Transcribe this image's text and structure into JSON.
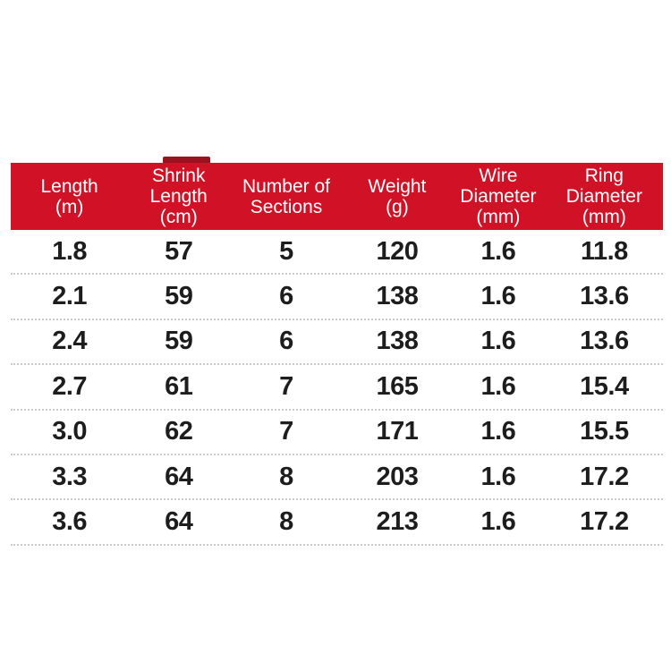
{
  "accent_color": "#d11226",
  "table": {
    "headers": [
      {
        "label": "Length\n(m)"
      },
      {
        "label": "Shrink\nLength\n(cm)"
      },
      {
        "label": "Number of\nSections"
      },
      {
        "label": "Weight\n(g)"
      },
      {
        "label": "Wire\nDiameter\n(mm)"
      },
      {
        "label": "Ring\nDiameter\n(mm)"
      }
    ],
    "rows": [
      {
        "cells": [
          "1.8",
          "57",
          "5",
          "120",
          "1.6",
          "11.8"
        ]
      },
      {
        "cells": [
          "2.1",
          "59",
          "6",
          "138",
          "1.6",
          "13.6"
        ]
      },
      {
        "cells": [
          "2.4",
          "59",
          "6",
          "138",
          "1.6",
          "13.6"
        ]
      },
      {
        "cells": [
          "2.7",
          "61",
          "7",
          "165",
          "1.6",
          "15.4"
        ]
      },
      {
        "cells": [
          "3.0",
          "62",
          "7",
          "171",
          "1.6",
          "15.5"
        ]
      },
      {
        "cells": [
          "3.3",
          "64",
          "8",
          "203",
          "1.6",
          "17.2"
        ]
      },
      {
        "cells": [
          "3.6",
          "64",
          "8",
          "213",
          "1.6",
          "17.2"
        ]
      }
    ]
  },
  "chart_data": {
    "type": "table",
    "title": "",
    "columns": [
      "Length (m)",
      "Shrink Length (cm)",
      "Number of Sections",
      "Weight (g)",
      "Wire Diameter (mm)",
      "Ring Diameter (mm)"
    ],
    "rows": [
      [
        1.8,
        57,
        5,
        120,
        1.6,
        11.8
      ],
      [
        2.1,
        59,
        6,
        138,
        1.6,
        13.6
      ],
      [
        2.4,
        59,
        6,
        138,
        1.6,
        13.6
      ],
      [
        2.7,
        61,
        7,
        165,
        1.6,
        15.4
      ],
      [
        3.0,
        62,
        7,
        171,
        1.6,
        15.5
      ],
      [
        3.3,
        64,
        8,
        203,
        1.6,
        17.2
      ],
      [
        3.6,
        64,
        8,
        213,
        1.6,
        17.2
      ]
    ],
    "layout": {
      "header_bg": "#d11226",
      "header_text": "#ffffff",
      "body_text": "#1d1d1d",
      "row_separator": "dotted",
      "grid": "horizontal-only"
    }
  }
}
